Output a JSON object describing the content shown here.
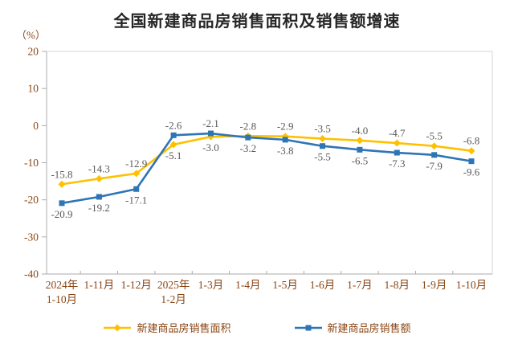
{
  "title": "全国新建商品房销售面积及销售额增速",
  "unit_label": "（%）",
  "chart_data": {
    "type": "line",
    "title": "全国新建商品房销售面积及销售额增速",
    "unit": "（%）",
    "categories": [
      "2024年\n1-10月",
      "1-11月",
      "1-12月",
      "2025年\n1-2月",
      "1-3月",
      "1-4月",
      "1-5月",
      "1-6月",
      "1-7月",
      "1-8月",
      "1-9月",
      "1-10月"
    ],
    "series": [
      {
        "name": "新建商品房销售面积",
        "marker": "diamond",
        "color": "#FFC000",
        "values": [
          -15.8,
          -14.3,
          -12.9,
          -5.1,
          -3.0,
          -2.8,
          -2.9,
          -3.5,
          -4.0,
          -4.7,
          -5.5,
          -6.8
        ]
      },
      {
        "name": "新建商品房销售额",
        "marker": "square",
        "color": "#2E75B6",
        "values": [
          -20.9,
          -19.2,
          -17.1,
          -2.6,
          -2.1,
          -3.2,
          -3.8,
          -5.5,
          -6.5,
          -7.3,
          -7.9,
          -9.6
        ]
      }
    ],
    "ylim": [
      -40,
      20
    ],
    "ytick_step": 10,
    "grid": false,
    "data_labels": true,
    "legend_position": "bottom",
    "colors": {
      "title_text": "#262626",
      "axis_text": "#8B4513",
      "data_label": "#595959",
      "plot_border": "#D6D6D6",
      "axis_line": "#ABABAB",
      "background": "#FFFFFF"
    }
  }
}
